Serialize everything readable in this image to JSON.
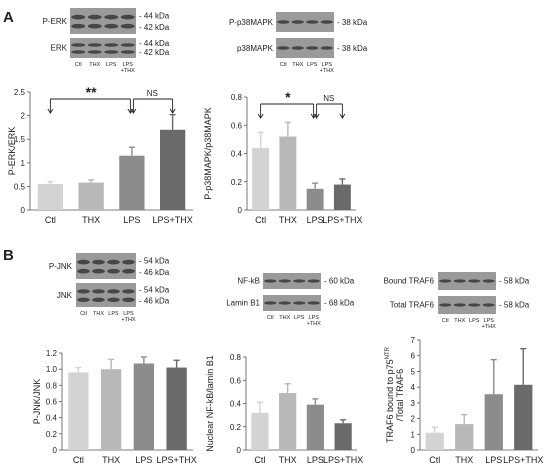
{
  "panel_labels": [
    "A",
    "B"
  ],
  "categories": [
    "Ctl",
    "THX",
    "LPS",
    "LPS+THX"
  ],
  "blots": {
    "perk": {
      "row_labels": [
        "P-ERK",
        "ERK"
      ],
      "kda_top": [
        "- 44 kDa",
        "- 42 kDa"
      ],
      "kda_bottom": [
        "- 44 kDa",
        "- 42 kDa"
      ],
      "lanes": [
        "Ctl",
        "THX",
        "LPS",
        "LPS\n+THX"
      ]
    },
    "p38": {
      "row_labels": [
        "P-p38MAPK",
        "p38MAPK"
      ],
      "kda": [
        "- 38 kDa",
        "- 38 kDa"
      ],
      "lanes": [
        "Ctl",
        "THX",
        "LPS",
        "LPS\n+THX"
      ]
    },
    "jnk": {
      "row_labels": [
        "P-JNK",
        "JNK"
      ],
      "kda_top": [
        "- 54 kDa",
        "- 46 kDa"
      ],
      "kda_bottom": [
        "- 54 kDa",
        "- 46 kDa"
      ],
      "lanes": [
        "Ctl",
        "THX",
        "LPS",
        "LPS\n+THX"
      ]
    },
    "nfkb": {
      "row_labels": [
        "NF-kB",
        "Lamin B1"
      ],
      "kda": [
        "- 60 kDa",
        "- 68 kDa"
      ],
      "lanes": [
        "Ctl",
        "THX",
        "LPS",
        "LPS\n+THX"
      ]
    },
    "traf6": {
      "row_labels": [
        "Bound TRAF6",
        "Total TRAF6"
      ],
      "kda": [
        "- 58 kDa",
        "- 58 kDa"
      ],
      "lanes": [
        "Ctl",
        "THX",
        "LPS",
        "LPS\n+THX"
      ]
    }
  },
  "colors": [
    "#d3d3d3",
    "#b8b8b8",
    "#8c8c8c",
    "#6a6a6a"
  ],
  "chart_data": [
    {
      "id": "erk",
      "type": "bar",
      "categories": [
        "Ctl",
        "THX",
        "LPS",
        "LPS+THX"
      ],
      "values": [
        0.55,
        0.58,
        1.15,
        1.7
      ],
      "errors": [
        0.05,
        0.06,
        0.18,
        0.32
      ],
      "ylabel": "P-ERK/ERK",
      "ylim": [
        0,
        2.5
      ],
      "yticks": [
        "0",
        "0.5",
        "1",
        "1.5",
        "2",
        "2.5"
      ],
      "annotations": [
        "**",
        "NS"
      ]
    },
    {
      "id": "p38",
      "type": "bar",
      "categories": [
        "Ctl",
        "THX",
        "LPS",
        "LPS+THX"
      ],
      "values": [
        0.44,
        0.52,
        0.15,
        0.18
      ],
      "errors": [
        0.11,
        0.1,
        0.04,
        0.04
      ],
      "ylabel": "P-p38MAPK/p38MAPK",
      "ylim": [
        0,
        0.8
      ],
      "yticks": [
        "0",
        "0.2",
        "0.4",
        "0.6",
        "0.8"
      ],
      "annotations": [
        "*",
        "NS"
      ]
    },
    {
      "id": "jnk",
      "type": "bar",
      "categories": [
        "Ctl",
        "THX",
        "LPS",
        "LPS+THX"
      ],
      "values": [
        0.96,
        1.0,
        1.07,
        1.02
      ],
      "errors": [
        0.06,
        0.12,
        0.08,
        0.09
      ],
      "ylabel": "P-JNK/JNK",
      "ylim": [
        0,
        1.2
      ],
      "yticks": [
        "0",
        "0.2",
        "0.4",
        "0.6",
        "0.8",
        "1.0",
        "1.2"
      ],
      "annotations": []
    },
    {
      "id": "nfkb",
      "type": "bar",
      "categories": [
        "Ctl",
        "THX",
        "LPS",
        "LPS+THX"
      ],
      "values": [
        0.32,
        0.49,
        0.39,
        0.23
      ],
      "errors": [
        0.09,
        0.08,
        0.05,
        0.03
      ],
      "ylabel": "Nuclear NF-kB/lamin B1",
      "ylim": [
        0,
        0.8
      ],
      "yticks": [
        "0",
        "0.2",
        "0.4",
        "0.6",
        "0.8"
      ],
      "annotations": []
    },
    {
      "id": "traf6",
      "type": "bar",
      "categories": [
        "Ctl",
        "THX",
        "LPS",
        "LPS+THX"
      ],
      "values": [
        1.1,
        1.65,
        3.55,
        4.15
      ],
      "errors": [
        0.35,
        0.6,
        2.2,
        2.3
      ],
      "ylabel": "TRAF6 bound to p75NTR / Total TRAF6",
      "ylabel_lines": [
        "TRAF6 bound to p75",
        "/Total TRAF6"
      ],
      "ylabel_sup": "NTR",
      "ylim": [
        0,
        7
      ],
      "yticks": [
        "0",
        "1",
        "2",
        "3",
        "4",
        "5",
        "6",
        "7"
      ],
      "annotations": []
    }
  ]
}
